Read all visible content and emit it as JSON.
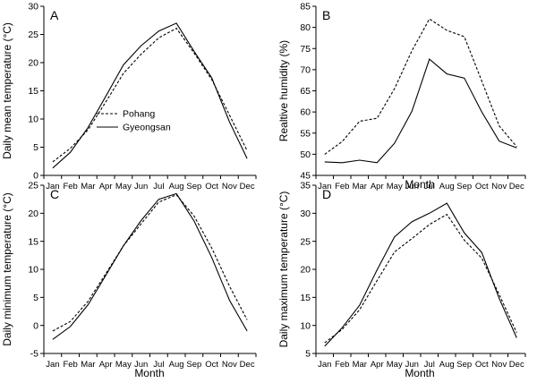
{
  "chart_data": [
    {
      "type": "line",
      "panel_letter": "A",
      "title": "",
      "xlabel": "",
      "ylabel": "Daily mean temperature (°C)",
      "ylim": [
        0,
        30
      ],
      "yticks": [
        0,
        5,
        10,
        15,
        20,
        25,
        30
      ],
      "categories": [
        "Jan",
        "Feb",
        "Mar",
        "Apr",
        "May",
        "Jun",
        "Jul",
        "Aug",
        "Sep",
        "Oct",
        "Nov",
        "Dec"
      ],
      "series": [
        {
          "name": "Pohang",
          "style": "dashed",
          "values": [
            2.4,
            4.8,
            8.1,
            13.0,
            18.1,
            21.5,
            24.4,
            26.1,
            21.7,
            17.0,
            10.7,
            4.4
          ]
        },
        {
          "name": "Gyeongsan",
          "style": "solid",
          "values": [
            1.3,
            4.1,
            8.5,
            14.0,
            19.6,
            23.0,
            25.6,
            27.0,
            22.0,
            17.3,
            9.5,
            3.0
          ]
        }
      ],
      "legend": {
        "placement": "center-left",
        "entries": [
          "Pohang",
          "Gyeongsan"
        ]
      }
    },
    {
      "type": "line",
      "panel_letter": "B",
      "title": "",
      "xlabel": "Month",
      "ylabel": "Realtive humidity (%)",
      "ylim": [
        45,
        85
      ],
      "yticks": [
        45,
        50,
        55,
        60,
        65,
        70,
        75,
        80,
        85
      ],
      "categories": [
        "Jan",
        "Feb",
        "Mar",
        "Apr",
        "May",
        "Jun",
        "Jul",
        "Aug",
        "Sep",
        "Oct",
        "Nov",
        "Dec"
      ],
      "series": [
        {
          "name": "Pohang",
          "style": "dashed",
          "values": [
            50.0,
            53.0,
            57.8,
            58.5,
            65.5,
            74.5,
            82.0,
            79.3,
            77.8,
            67.3,
            56.7,
            51.8
          ]
        },
        {
          "name": "Gyeongsan",
          "style": "solid",
          "values": [
            48.2,
            48.0,
            48.6,
            48.0,
            52.6,
            60.2,
            72.5,
            69.0,
            68.0,
            60.0,
            53.1,
            51.5
          ]
        }
      ]
    },
    {
      "type": "line",
      "panel_letter": "C",
      "title": "",
      "xlabel": "Month",
      "ylabel": "Daily minimum temperature (°C)",
      "ylim": [
        -5,
        25
      ],
      "yticks": [
        -5,
        0,
        5,
        10,
        15,
        20,
        25
      ],
      "categories": [
        "Jan",
        "Feb",
        "Mar",
        "Apr",
        "May",
        "Jun",
        "Jul",
        "Aug",
        "Sep",
        "Oct",
        "Nov",
        "Dec"
      ],
      "series": [
        {
          "name": "Pohang",
          "style": "dashed",
          "values": [
            -1.0,
            0.7,
            4.3,
            9.2,
            14.2,
            18.1,
            22.0,
            23.3,
            19.5,
            13.8,
            7.0,
            1.0
          ]
        },
        {
          "name": "Gyeongsan",
          "style": "solid",
          "values": [
            -2.5,
            -0.2,
            3.7,
            8.9,
            14.2,
            18.7,
            22.5,
            23.5,
            18.6,
            12.1,
            4.5,
            -1.0
          ]
        }
      ]
    },
    {
      "type": "line",
      "panel_letter": "D",
      "title": "",
      "xlabel": "Month",
      "ylabel": "Daily maximum temperature (°C)",
      "ylim": [
        5,
        35
      ],
      "yticks": [
        5,
        10,
        15,
        20,
        25,
        30,
        35
      ],
      "categories": [
        "Jan",
        "Feb",
        "Mar",
        "Apr",
        "May",
        "Jun",
        "Jul",
        "Aug",
        "Sep",
        "Oct",
        "Nov",
        "Dec"
      ],
      "series": [
        {
          "name": "Pohang",
          "style": "dashed",
          "values": [
            6.9,
            9.3,
            12.8,
            18.0,
            23.1,
            25.5,
            28.0,
            29.8,
            25.2,
            22.0,
            15.5,
            8.7
          ]
        },
        {
          "name": "Gyeongsan",
          "style": "solid",
          "values": [
            6.3,
            9.6,
            13.6,
            19.9,
            25.8,
            28.5,
            30.0,
            31.8,
            26.5,
            23.0,
            14.8,
            7.8
          ]
        }
      ]
    }
  ]
}
